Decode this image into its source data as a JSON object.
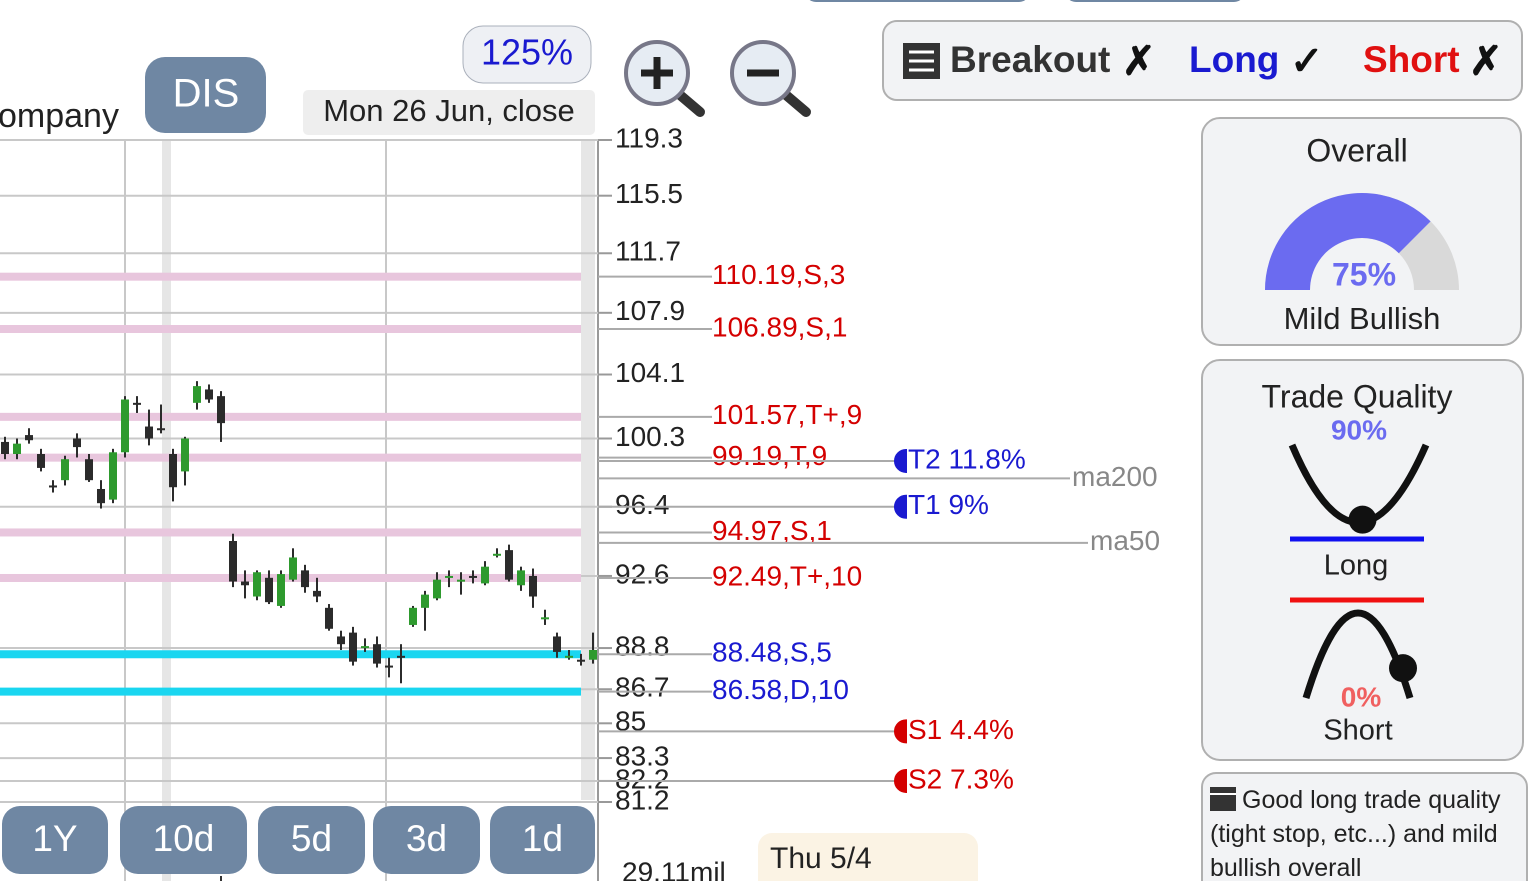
{
  "header": {
    "company_fragment": "ompany",
    "symbol": "DIS",
    "zoom": "125%",
    "date": "Mon 26 Jun, close"
  },
  "signals": {
    "breakout": "Breakout",
    "breakout_mark": "✗",
    "long": "Long",
    "long_mark": "✓",
    "short": "Short",
    "short_mark": "✗"
  },
  "chart_data": {
    "type": "candlestick",
    "ylim": [
      81.2,
      119.3
    ],
    "log_scale": true,
    "yticks": [
      119.3,
      115.5,
      111.7,
      107.9,
      104.1,
      100.3,
      96.4,
      92.6,
      88.8,
      86.7,
      85,
      83.3,
      82.2,
      81.2
    ],
    "up_color": "#2e9a2e",
    "down_color": "#2b2b2b",
    "open": [
      100.1,
      99.4,
      100.5,
      99.4,
      97.6,
      97.9,
      100.3,
      99.1,
      97.4,
      96.8,
      99.5,
      102.4,
      101.0,
      100.9,
      99.4,
      98.4,
      102.4,
      103.2,
      102.8,
      94.5,
      92.3,
      91.5,
      92.5,
      91.0,
      92.4,
      92.9,
      91.8,
      90.9,
      89.4,
      89.6,
      88.9,
      89.0,
      87.9,
      88.4,
      90.0,
      90.9,
      91.4,
      92.5,
      92.4,
      92.6,
      92.2,
      93.8,
      94.0,
      92.1,
      92.6,
      90.4,
      89.4,
      88.4,
      88.2,
      88.2
    ],
    "high": [
      100.4,
      100.3,
      100.9,
      99.7,
      97.9,
      99.3,
      100.6,
      99.4,
      97.9,
      99.7,
      102.8,
      102.8,
      102.0,
      102.3,
      99.7,
      100.4,
      103.7,
      103.5,
      103.1,
      94.9,
      92.9,
      92.9,
      92.9,
      92.9,
      94.1,
      93.2,
      92.5,
      91.1,
      89.7,
      89.9,
      89.3,
      89.4,
      88.3,
      89.0,
      91.0,
      91.8,
      92.8,
      92.9,
      92.8,
      92.9,
      93.4,
      94.1,
      94.3,
      93.1,
      93.0,
      90.8,
      89.6,
      88.7,
      88.5,
      89.6
    ],
    "low": [
      99.1,
      99.1,
      100.0,
      98.4,
      97.2,
      97.6,
      99.2,
      97.8,
      96.3,
      96.6,
      99.2,
      101.8,
      99.9,
      100.6,
      96.7,
      97.6,
      102.0,
      102.4,
      100.1,
      92.0,
      91.4,
      91.3,
      91.1,
      90.9,
      92.3,
      91.7,
      91.2,
      89.7,
      88.7,
      87.9,
      88.6,
      87.8,
      87.3,
      87.0,
      89.9,
      89.7,
      91.3,
      92.0,
      91.6,
      92.2,
      92.1,
      93.6,
      92.3,
      91.8,
      90.9,
      90.0,
      88.3,
      88.2,
      87.9,
      88.0
    ],
    "close": [
      99.4,
      100.0,
      100.2,
      98.6,
      97.5,
      99.1,
      99.8,
      97.9,
      96.6,
      99.5,
      102.6,
      102.3,
      100.3,
      100.8,
      97.5,
      100.3,
      103.4,
      102.6,
      101.2,
      92.3,
      92.1,
      92.8,
      91.2,
      92.7,
      93.6,
      92.0,
      91.5,
      89.8,
      89.0,
      88.1,
      88.9,
      88.0,
      87.8,
      88.3,
      90.9,
      91.6,
      92.4,
      92.6,
      92.4,
      92.5,
      93.1,
      93.8,
      92.4,
      92.9,
      91.5,
      90.4,
      88.6,
      88.4,
      88.1,
      88.7
    ],
    "levels": [
      {
        "value": 110.19,
        "label": "110.19,S,3",
        "color": "#d40000",
        "band": "#e8c6dd"
      },
      {
        "value": 106.89,
        "label": "106.89,S,1",
        "color": "#d40000",
        "band": "#e8c6dd"
      },
      {
        "value": 101.57,
        "label": "101.57,T+,9",
        "color": "#d40000",
        "band": "#e8c6dd"
      },
      {
        "value": 99.19,
        "label": "99.19,T,9",
        "color": "#d40000",
        "band": "#e8c6dd"
      },
      {
        "value": 94.97,
        "label": "94.97,S,1",
        "color": "#d40000",
        "band": "#e8c6dd"
      },
      {
        "value": 92.49,
        "label": "92.49,T+,10",
        "color": "#d40000",
        "band": "#e8c6dd"
      },
      {
        "value": 88.48,
        "label": "88.48,S,5",
        "color": "#1a1ad0",
        "band": "#1ad6f0"
      },
      {
        "value": 86.58,
        "label": "86.58,D,10",
        "color": "#1a1ad0",
        "band": "#1ad6f0"
      }
    ],
    "targets": [
      {
        "value": 99.0,
        "label": "T2 11.8%",
        "color": "#1a1ad0"
      },
      {
        "value": 96.4,
        "label": "T1 9%",
        "color": "#1a1ad0"
      },
      {
        "value": 84.6,
        "label": "S1 4.4%",
        "color": "#d40000"
      },
      {
        "value": 82.2,
        "label": "S2 7.3%",
        "color": "#d40000"
      }
    ],
    "moving_averages": [
      {
        "name": "ma200",
        "value": 98.0
      },
      {
        "name": "ma50",
        "value": 94.4
      }
    ],
    "volume_label": "29.11mil",
    "hover_date": "Thu 5/4"
  },
  "ranges": [
    "1Y",
    "10d",
    "5d",
    "3d",
    "1d"
  ],
  "overall": {
    "title": "Overall",
    "value": 75,
    "label": "75%",
    "verdict": "Mild Bullish"
  },
  "trade_quality": {
    "title": "Trade Quality",
    "long_value": 90,
    "long_label": "90%",
    "long": "Long",
    "short_value": 0,
    "short_label": "0%",
    "short": "Short"
  },
  "note": "Good long trade quality (tight stop, etc...) and mild bullish overall"
}
